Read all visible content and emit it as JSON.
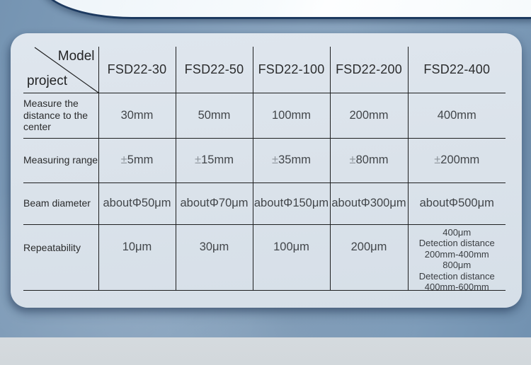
{
  "table": {
    "corner": {
      "top_label": "Model",
      "bottom_label": "project"
    },
    "columns": [
      "FSD22-30",
      "FSD22-50",
      "FSD22-100",
      "FSD22-200",
      "FSD22-400"
    ],
    "rows": [
      {
        "label": "Measure the distance to the center",
        "values": [
          "30mm",
          "50mm",
          "100mm",
          "200mm",
          "400mm"
        ]
      },
      {
        "label": "Measuring range",
        "values": [
          "±5mm",
          "±15mm",
          "±35mm",
          "±80mm",
          "±200mm"
        ]
      },
      {
        "label": "Beam diameter",
        "values": [
          "aboutΦ50μm",
          "aboutΦ70μm",
          "aboutΦ150μm",
          "aboutΦ300μm",
          "aboutΦ500μm"
        ]
      },
      {
        "label": "Repeatability",
        "values": [
          "10μm",
          "30μm",
          "100μm",
          "200μm",
          [
            "400μm",
            "Detection distance",
            "200mm-400mm",
            "800μm",
            "Detection distance",
            "400mm-600mm"
          ]
        ]
      }
    ]
  },
  "colors": {
    "background_blue": "#86a1bc",
    "card_background": "#dae2ea",
    "banner_white": "#f8fbfd",
    "banner_border_navy": "#1d3a60",
    "bottom_band_gray": "#d3d9de",
    "table_line": "#1e1f20",
    "text_dark": "#2c2d2e",
    "text_value": "#42464a",
    "plus_minus_gray": "#8e959c"
  }
}
